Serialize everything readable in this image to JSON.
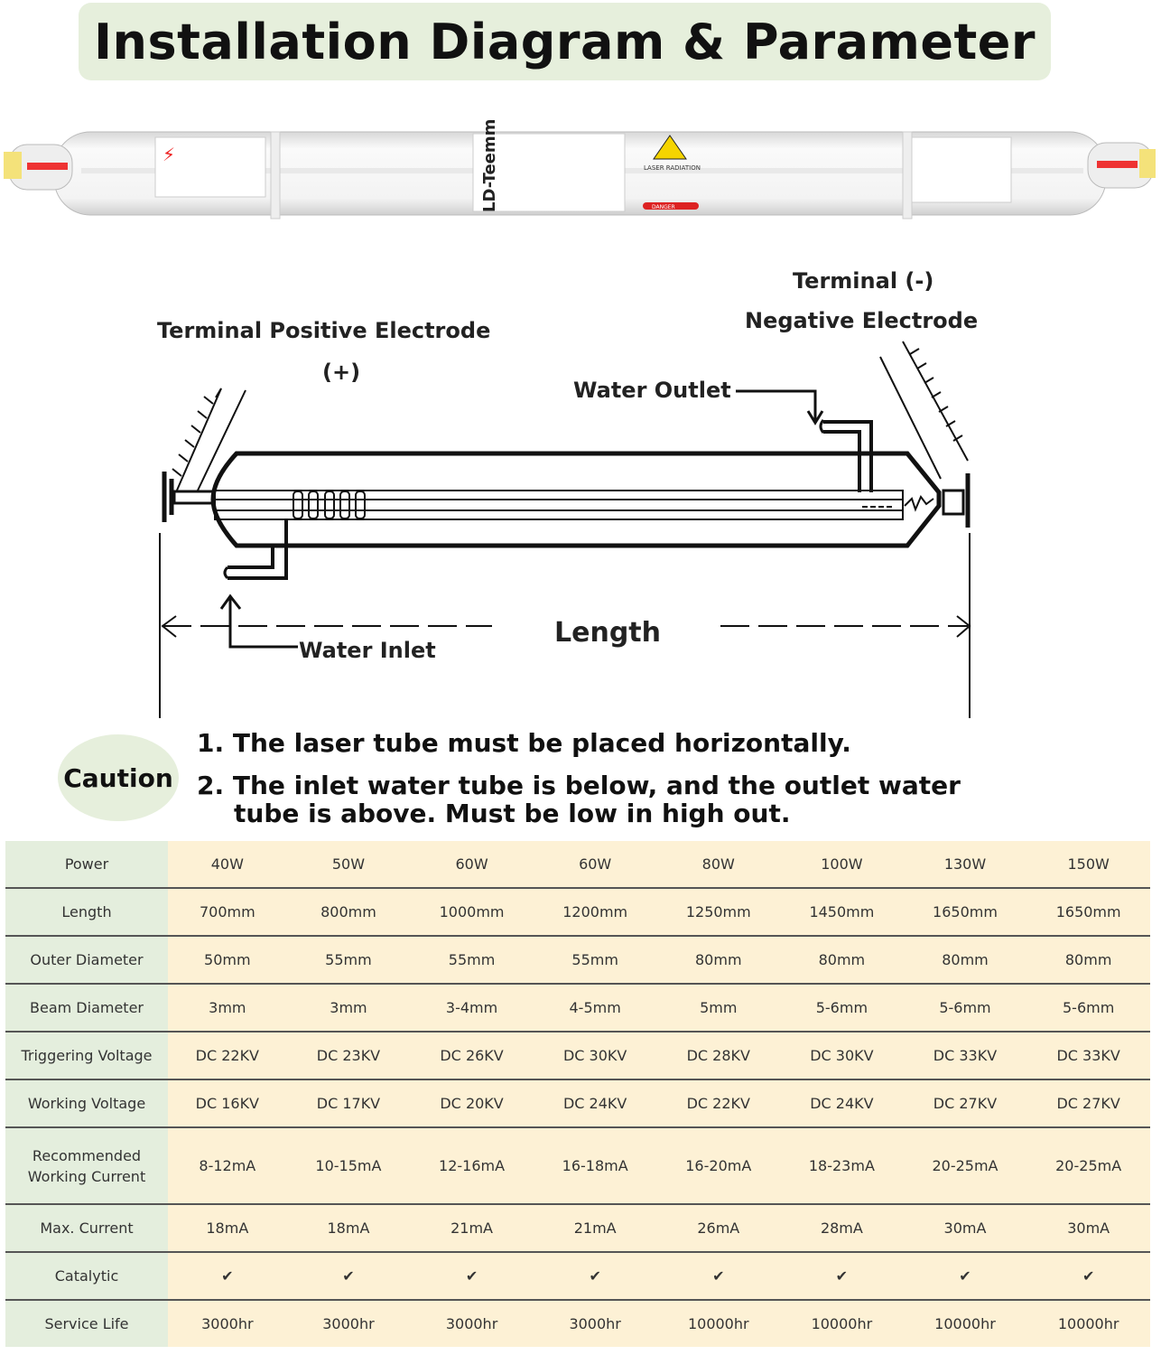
{
  "title": "Installation Diagram & Parameter",
  "tube_photo": {
    "logo": "LD-Teemm",
    "warning_label": "LASER RADIATION",
    "danger_label": "DANGER"
  },
  "diagram": {
    "terminal_positive_label": "Terminal Positive Electrode",
    "terminal_positive_sign": "(+)",
    "terminal_negative_label": "Terminal  (-)",
    "negative_electrode_label": "Negative Electrode",
    "water_outlet_label": "Water Outlet",
    "water_inlet_label": "Water Inlet",
    "length_label": "Length"
  },
  "caution": {
    "badge": "Caution",
    "notes": [
      "1. The laser tube must be placed horizontally.",
      "2. The inlet water tube is below, and the outlet water",
      "tube is above. Must be low in high out."
    ]
  },
  "colors": {
    "title_bg": "#e6efdc",
    "header_col_bg": "#e4eedd",
    "cell_bg": "#fdf1d5"
  },
  "table": {
    "rows": [
      {
        "label": "Power",
        "values": [
          "40W",
          "50W",
          "60W",
          "60W",
          "80W",
          "100W",
          "130W",
          "150W"
        ]
      },
      {
        "label": "Length",
        "values": [
          "700mm",
          "800mm",
          "1000mm",
          "1200mm",
          "1250mm",
          "1450mm",
          "1650mm",
          "1650mm"
        ]
      },
      {
        "label": "Outer Diameter",
        "values": [
          "50mm",
          "55mm",
          "55mm",
          "55mm",
          "80mm",
          "80mm",
          "80mm",
          "80mm"
        ]
      },
      {
        "label": "Beam Diameter",
        "values": [
          "3mm",
          "3mm",
          "3-4mm",
          "4-5mm",
          "5mm",
          "5-6mm",
          "5-6mm",
          "5-6mm"
        ]
      },
      {
        "label": "Triggering Voltage",
        "values": [
          "DC 22KV",
          "DC 23KV",
          "DC 26KV",
          "DC 30KV",
          "DC 28KV",
          "DC 30KV",
          "DC 33KV",
          "DC 33KV"
        ]
      },
      {
        "label": "Working Voltage",
        "values": [
          "DC 16KV",
          "DC 17KV",
          "DC 20KV",
          "DC 24KV",
          "DC 22KV",
          "DC 24KV",
          "DC 27KV",
          "DC 27KV"
        ]
      },
      {
        "label": "Recommended Working Current",
        "values": [
          "8-12mA",
          "10-15mA",
          "12-16mA",
          "16-18mA",
          "16-20mA",
          "18-23mA",
          "20-25mA",
          "20-25mA"
        ]
      },
      {
        "label": "Max. Current",
        "values": [
          "18mA",
          "18mA",
          "21mA",
          "21mA",
          "26mA",
          "28mA",
          "30mA",
          "30mA"
        ]
      },
      {
        "label": "Catalytic",
        "values": [
          "✔",
          "✔",
          "✔",
          "✔",
          "✔",
          "✔",
          "✔",
          "✔"
        ]
      },
      {
        "label": "Service Life",
        "values": [
          "3000hr",
          "3000hr",
          "3000hr",
          "3000hr",
          "10000hr",
          "10000hr",
          "10000hr",
          "10000hr"
        ]
      }
    ]
  }
}
